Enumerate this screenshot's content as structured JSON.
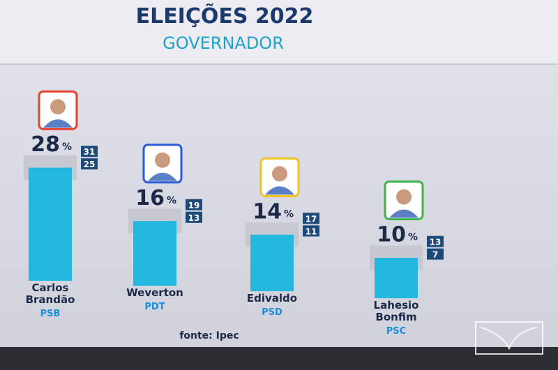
{
  "chart_data": {
    "type": "bar",
    "title": "ELEIÇÕES 2022",
    "subtitle": "GOVERNADOR",
    "categories": [
      "Carlos Brandão",
      "Weverton",
      "Edivaldo",
      "Lahesio Bonfim"
    ],
    "parties": [
      "PSB",
      "PDT",
      "PSD",
      "PSC"
    ],
    "values": [
      28,
      16,
      14,
      10
    ],
    "upper": [
      31,
      19,
      17,
      13
    ],
    "lower": [
      25,
      13,
      11,
      7
    ],
    "value_unit": "%",
    "color": "#22b8e0",
    "source": "fonte: Ipec"
  }
}
